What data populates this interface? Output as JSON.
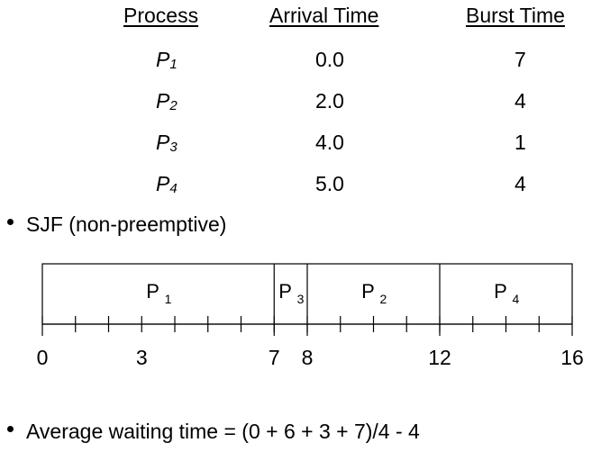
{
  "table": {
    "headers": {
      "process": "Process",
      "arrival": "Arrival Time",
      "burst": "Burst Time"
    },
    "rows": [
      {
        "name": "P",
        "sub": "1",
        "arrival": "0.0",
        "burst": "7"
      },
      {
        "name": "P",
        "sub": "2",
        "arrival": "2.0",
        "burst": "4"
      },
      {
        "name": "P",
        "sub": "3",
        "arrival": "4.0",
        "burst": "1"
      },
      {
        "name": "P",
        "sub": "4",
        "arrival": "5.0",
        "burst": "4"
      }
    ]
  },
  "algorithm": "SJF (non-preemptive)",
  "gantt": {
    "total": 16,
    "blocks": [
      {
        "name": "P",
        "sub": "1",
        "start": 0,
        "end": 7
      },
      {
        "name": "P",
        "sub": "3",
        "start": 7,
        "end": 8
      },
      {
        "name": "P",
        "sub": "2",
        "start": 8,
        "end": 12
      },
      {
        "name": "P",
        "sub": "4",
        "start": 12,
        "end": 16
      }
    ],
    "axis_labels": [
      "0",
      "3",
      "7",
      "8",
      "12",
      "16"
    ]
  },
  "summary": "Average waiting time = (0 + 6 + 3 + 7)/4 - 4"
}
